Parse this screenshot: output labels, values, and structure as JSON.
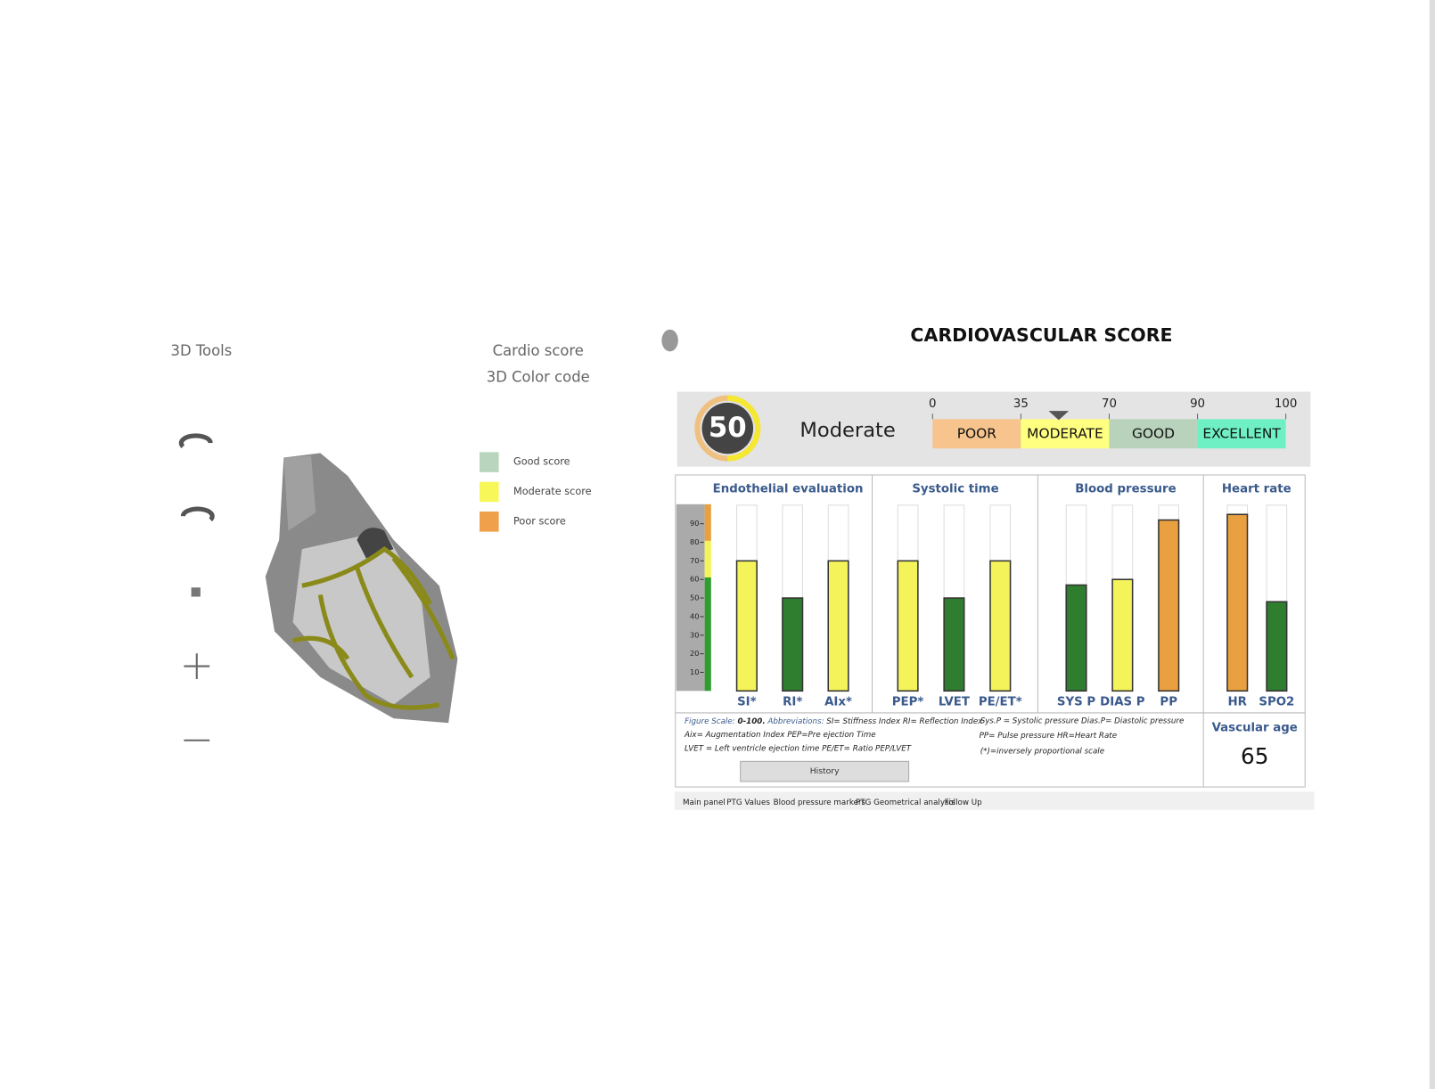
{
  "tools_panel": {
    "title": "3D Tools"
  },
  "color_code": {
    "title_line1": "Cardio score",
    "title_line2": "3D Color code",
    "legend": [
      {
        "label": "Good score",
        "color": "#b9d5bd"
      },
      {
        "label": "Moderate score",
        "color": "#f7f75a"
      },
      {
        "label": "Poor score",
        "color": "#f0a04b"
      }
    ]
  },
  "chart_data": {
    "type": "bar",
    "title": "CARDIOVASCULAR SCORE",
    "score": 50,
    "score_label": "Moderate",
    "scale": {
      "ticks": [
        0,
        35,
        70,
        90,
        100
      ],
      "segments": [
        {
          "label": "POOR",
          "color": "#f6c48c"
        },
        {
          "label": "MODERATE",
          "color": "#ffff80"
        },
        {
          "label": "GOOD",
          "color": "#b8d2bb"
        },
        {
          "label": "EXCELLENT",
          "color": "#6ff0c4"
        }
      ]
    },
    "ylim": [
      0,
      100
    ],
    "yticks": [
      10,
      20,
      30,
      40,
      50,
      60,
      70,
      80,
      90
    ],
    "groups": [
      {
        "name": "Endothelial evaluation",
        "categories": [
          "SI*",
          "RI*",
          "AIx*"
        ],
        "values": [
          70,
          50,
          70
        ],
        "colors": [
          "#f4f45a",
          "#2f7d2f",
          "#f4f45a"
        ]
      },
      {
        "name": "Systolic time",
        "categories": [
          "PEP*",
          "LVET",
          "PE/ET*"
        ],
        "values": [
          70,
          50,
          70
        ],
        "colors": [
          "#f4f45a",
          "#2f7d2f",
          "#f4f45a"
        ]
      },
      {
        "name": "Blood pressure",
        "categories": [
          "SYS P",
          "DIAS P",
          "PP"
        ],
        "values": [
          57,
          60,
          92
        ],
        "colors": [
          "#2f7d2f",
          "#f4f45a",
          "#e8a040"
        ]
      },
      {
        "name": "Heart rate",
        "categories": [
          "HR",
          "SPO2"
        ],
        "values": [
          95,
          48
        ],
        "colors": [
          "#e8a040",
          "#2f7d2f"
        ]
      }
    ]
  },
  "notes": {
    "scale_label": "Figure Scale:",
    "scale_value": "0-100.",
    "abbr_label": "Abbreviations:",
    "line1": "SI= Stiffness Index  RI= Reflection Index",
    "line2": "Aix= Augmentation Index PEP=Pre ejection Time",
    "line3": "LVET = Left ventricle ejection time PE/ET= Ratio PEP/LVET",
    "line4": "Sys.P = Systolic pressure Dias.P= Diastolic pressure",
    "line5": "PP= Pulse pressure      HR=Heart Rate",
    "line6": "(*)=inversely proportional scale"
  },
  "vascular_age": {
    "label": "Vascular age",
    "value": 65
  },
  "history_button": "History",
  "tabs": [
    "Main panel",
    "PTG Values",
    "Blood pressure markers",
    "PTG Geometrical analysis",
    "Follow Up"
  ]
}
